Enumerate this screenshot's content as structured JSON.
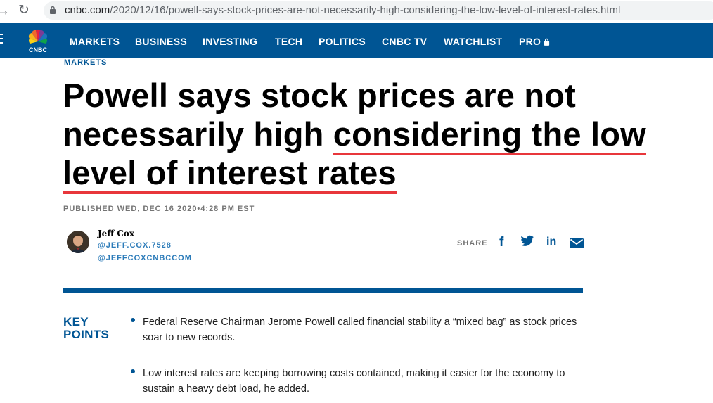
{
  "browser": {
    "url_host": "cnbc.com",
    "url_path": "/2020/12/16/powell-says-stock-prices-are-not-necessarily-high-considering-the-low-level-of-interest-rates.html"
  },
  "nav": {
    "logo_text": "CNBC",
    "items": [
      "MARKETS",
      "BUSINESS",
      "INVESTING",
      "TECH",
      "POLITICS",
      "CNBC TV",
      "WATCHLIST",
      "PRO"
    ]
  },
  "article": {
    "section": "MARKETS",
    "headline_part1": "Powell says stock prices are not necessarily high ",
    "headline_underlined1": "considering the low",
    "headline_underlined2": "level of interest rates",
    "published": "PUBLISHED WED, DEC 16 2020•4:28 PM EST",
    "author": {
      "name": "Jeff Cox",
      "handle1": "@JEFF.COX.7528",
      "handle2": "@JEFFCOXCNBCCOM"
    },
    "share_label": "SHARE",
    "share_icons": [
      "facebook-icon",
      "twitter-icon",
      "linkedin-icon",
      "email-icon"
    ],
    "key_points_label_line1": "KEY",
    "key_points_label_line2": "POINTS",
    "key_points": [
      "Federal Reserve Chairman Jerome Powell called financial stability a “mixed bag” as stock prices soar to new records.",
      "Low interest rates are keeping borrowing costs contained, making it easier for the economy to sustain a heavy debt load, he added."
    ]
  },
  "colors": {
    "nav_bg": "#005594",
    "underline": "#e8363b",
    "link_blue": "#2b7bb9"
  }
}
